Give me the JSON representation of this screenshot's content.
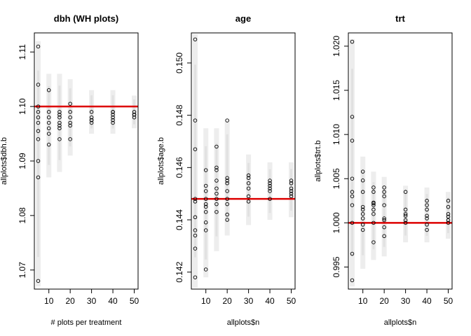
{
  "chart_data": [
    {
      "type": "scatter",
      "title": "dbh (WH plots)",
      "xlabel": "# plots per treatment",
      "ylabel": "allplots$dbh.b",
      "xlim": [
        3.2,
        51.8
      ],
      "ylim": [
        1.0665,
        1.1135
      ],
      "x_ticks": [
        10,
        20,
        30,
        40,
        50
      ],
      "y_ticks": [
        1.07,
        1.08,
        1.09,
        1.1,
        1.11
      ],
      "y_tick_labels": [
        "1.07",
        "1.08",
        "1.09",
        "1.10",
        "1.11"
      ],
      "reference_line": 1.1,
      "reference_color": "#dd0000",
      "band_color": "#d8d8d8",
      "bands": [
        {
          "x": 5,
          "low": 1.067,
          "high": 1.112
        },
        {
          "x": 10,
          "low": 1.087,
          "high": 1.106
        },
        {
          "x": 15,
          "low": 1.088,
          "high": 1.106
        },
        {
          "x": 20,
          "low": 1.091,
          "high": 1.105
        },
        {
          "x": 30,
          "low": 1.095,
          "high": 1.103
        },
        {
          "x": 40,
          "low": 1.095,
          "high": 1.103
        },
        {
          "x": 50,
          "low": 1.096,
          "high": 1.102
        }
      ],
      "points": [
        {
          "x": 5,
          "y": [
            1.111,
            1.104,
            1.1,
            1.099,
            1.098,
            1.097,
            1.0955,
            1.094,
            1.09,
            1.087,
            1.068
          ]
        },
        {
          "x": 10,
          "y": [
            1.103,
            1.099,
            1.098,
            1.097,
            1.096,
            1.095,
            1.093
          ]
        },
        {
          "x": 15,
          "y": [
            1.099,
            1.0985,
            1.098,
            1.097,
            1.0965,
            1.096,
            1.094
          ]
        },
        {
          "x": 20,
          "y": [
            1.1005,
            1.099,
            1.098,
            1.097,
            1.0965,
            1.094
          ]
        },
        {
          "x": 30,
          "y": [
            1.099,
            1.098,
            1.0975,
            1.097,
            1.0975
          ]
        },
        {
          "x": 40,
          "y": [
            1.099,
            1.0985,
            1.098,
            1.0975,
            1.097,
            1.099
          ]
        },
        {
          "x": 50,
          "y": [
            1.099,
            1.0985,
            1.098,
            1.0985
          ]
        }
      ]
    },
    {
      "type": "scatter",
      "title": "age",
      "xlabel": "allplots$n",
      "ylabel": "allplots$age.b",
      "xlim": [
        3.2,
        51.8
      ],
      "ylim": [
        0.14135,
        0.15115
      ],
      "x_ticks": [
        10,
        20,
        30,
        40,
        50
      ],
      "y_ticks": [
        0.142,
        0.144,
        0.146,
        0.148,
        0.15
      ],
      "y_tick_labels": [
        "0.142",
        "0.144",
        "0.146",
        "0.148",
        "0.150"
      ],
      "reference_line": 0.1448,
      "reference_color": "#dd0000",
      "band_color": "#d8d8d8",
      "bands": [
        {
          "x": 5,
          "low": 0.1414,
          "high": 0.1511
        },
        {
          "x": 10,
          "low": 0.1418,
          "high": 0.1475
        },
        {
          "x": 15,
          "low": 0.1428,
          "high": 0.1475
        },
        {
          "x": 20,
          "low": 0.1434,
          "high": 0.1478
        },
        {
          "x": 30,
          "low": 0.1438,
          "high": 0.1465
        },
        {
          "x": 40,
          "low": 0.144,
          "high": 0.1462
        },
        {
          "x": 50,
          "low": 0.1441,
          "high": 0.1462
        }
      ],
      "points": [
        {
          "x": 5,
          "y": [
            0.1509,
            0.1478,
            0.1467,
            0.1448,
            0.1447,
            0.1441,
            0.1436,
            0.1434,
            0.1429,
            0.1418
          ]
        },
        {
          "x": 10,
          "y": [
            0.1459,
            0.1453,
            0.1451,
            0.1448,
            0.1446,
            0.1445,
            0.1443,
            0.1439,
            0.1436,
            0.1421
          ]
        },
        {
          "x": 15,
          "y": [
            0.1468,
            0.146,
            0.1459,
            0.1455,
            0.1452,
            0.145,
            0.1448,
            0.1446,
            0.1443
          ]
        },
        {
          "x": 20,
          "y": [
            0.1478,
            0.1456,
            0.1455,
            0.1454,
            0.1451,
            0.1448,
            0.1446,
            0.1442,
            0.144
          ]
        },
        {
          "x": 30,
          "y": [
            0.1457,
            0.1456,
            0.1454,
            0.1452,
            0.1449,
            0.1447
          ]
        },
        {
          "x": 40,
          "y": [
            0.1455,
            0.1454,
            0.1453,
            0.1452,
            0.1451,
            0.1448
          ]
        },
        {
          "x": 50,
          "y": [
            0.1455,
            0.1454,
            0.1452,
            0.1451,
            0.145,
            0.1449
          ]
        }
      ]
    },
    {
      "type": "scatter",
      "title": "trt",
      "xlabel": "allplots$n",
      "ylabel": "allplots$trt.b",
      "xlim": [
        3.2,
        51.8
      ],
      "ylim": [
        0.9925,
        1.0215
      ],
      "x_ticks": [
        10,
        20,
        30,
        40,
        50
      ],
      "y_ticks": [
        0.995,
        1.0,
        1.005,
        1.01,
        1.015,
        1.02
      ],
      "y_tick_labels": [
        "0.995",
        "1.000",
        "1.005",
        "1.010",
        "1.015",
        "1.020"
      ],
      "reference_line": 1.0,
      "reference_color": "#dd0000",
      "band_color": "#d8d8d8",
      "bands": [
        {
          "x": 5,
          "low": 0.9928,
          "high": 1.0208
        },
        {
          "x": 10,
          "low": 0.9948,
          "high": 1.0075
        },
        {
          "x": 15,
          "low": 0.9958,
          "high": 1.0058
        },
        {
          "x": 20,
          "low": 0.9962,
          "high": 1.0052
        },
        {
          "x": 30,
          "low": 0.9978,
          "high": 1.0042
        },
        {
          "x": 40,
          "low": 0.9978,
          "high": 1.004
        },
        {
          "x": 50,
          "low": 0.9982,
          "high": 1.0035
        }
      ],
      "points": [
        {
          "x": 5,
          "y": [
            1.0205,
            1.012,
            1.0093,
            1.005,
            1.0035,
            1.003,
            1.002,
            1.0,
            0.9965,
            0.9935
          ]
        },
        {
          "x": 10,
          "y": [
            1.0058,
            1.0048,
            1.0035,
            1.0018,
            1.0015,
            1.001,
            1.0005,
            0.9998,
            0.9992
          ]
        },
        {
          "x": 15,
          "y": [
            1.004,
            1.0035,
            1.0023,
            1.0022,
            1.002,
            1.0015,
            1.001,
            1.0,
            0.9978
          ]
        },
        {
          "x": 20,
          "y": [
            1.004,
            1.0035,
            1.003,
            1.002,
            1.0005,
            1.0003,
            0.9995,
            0.9985
          ]
        },
        {
          "x": 30,
          "y": [
            1.0035,
            1.0015,
            1.001,
            1.0008,
            1.0003,
            1.0
          ]
        },
        {
          "x": 40,
          "y": [
            1.0025,
            1.002,
            1.0015,
            1.0008,
            1.0005,
            0.9998,
            0.9992
          ]
        },
        {
          "x": 50,
          "y": [
            1.0025,
            1.0018,
            1.001,
            1.0007,
            1.0003,
            1.0
          ]
        }
      ]
    }
  ]
}
